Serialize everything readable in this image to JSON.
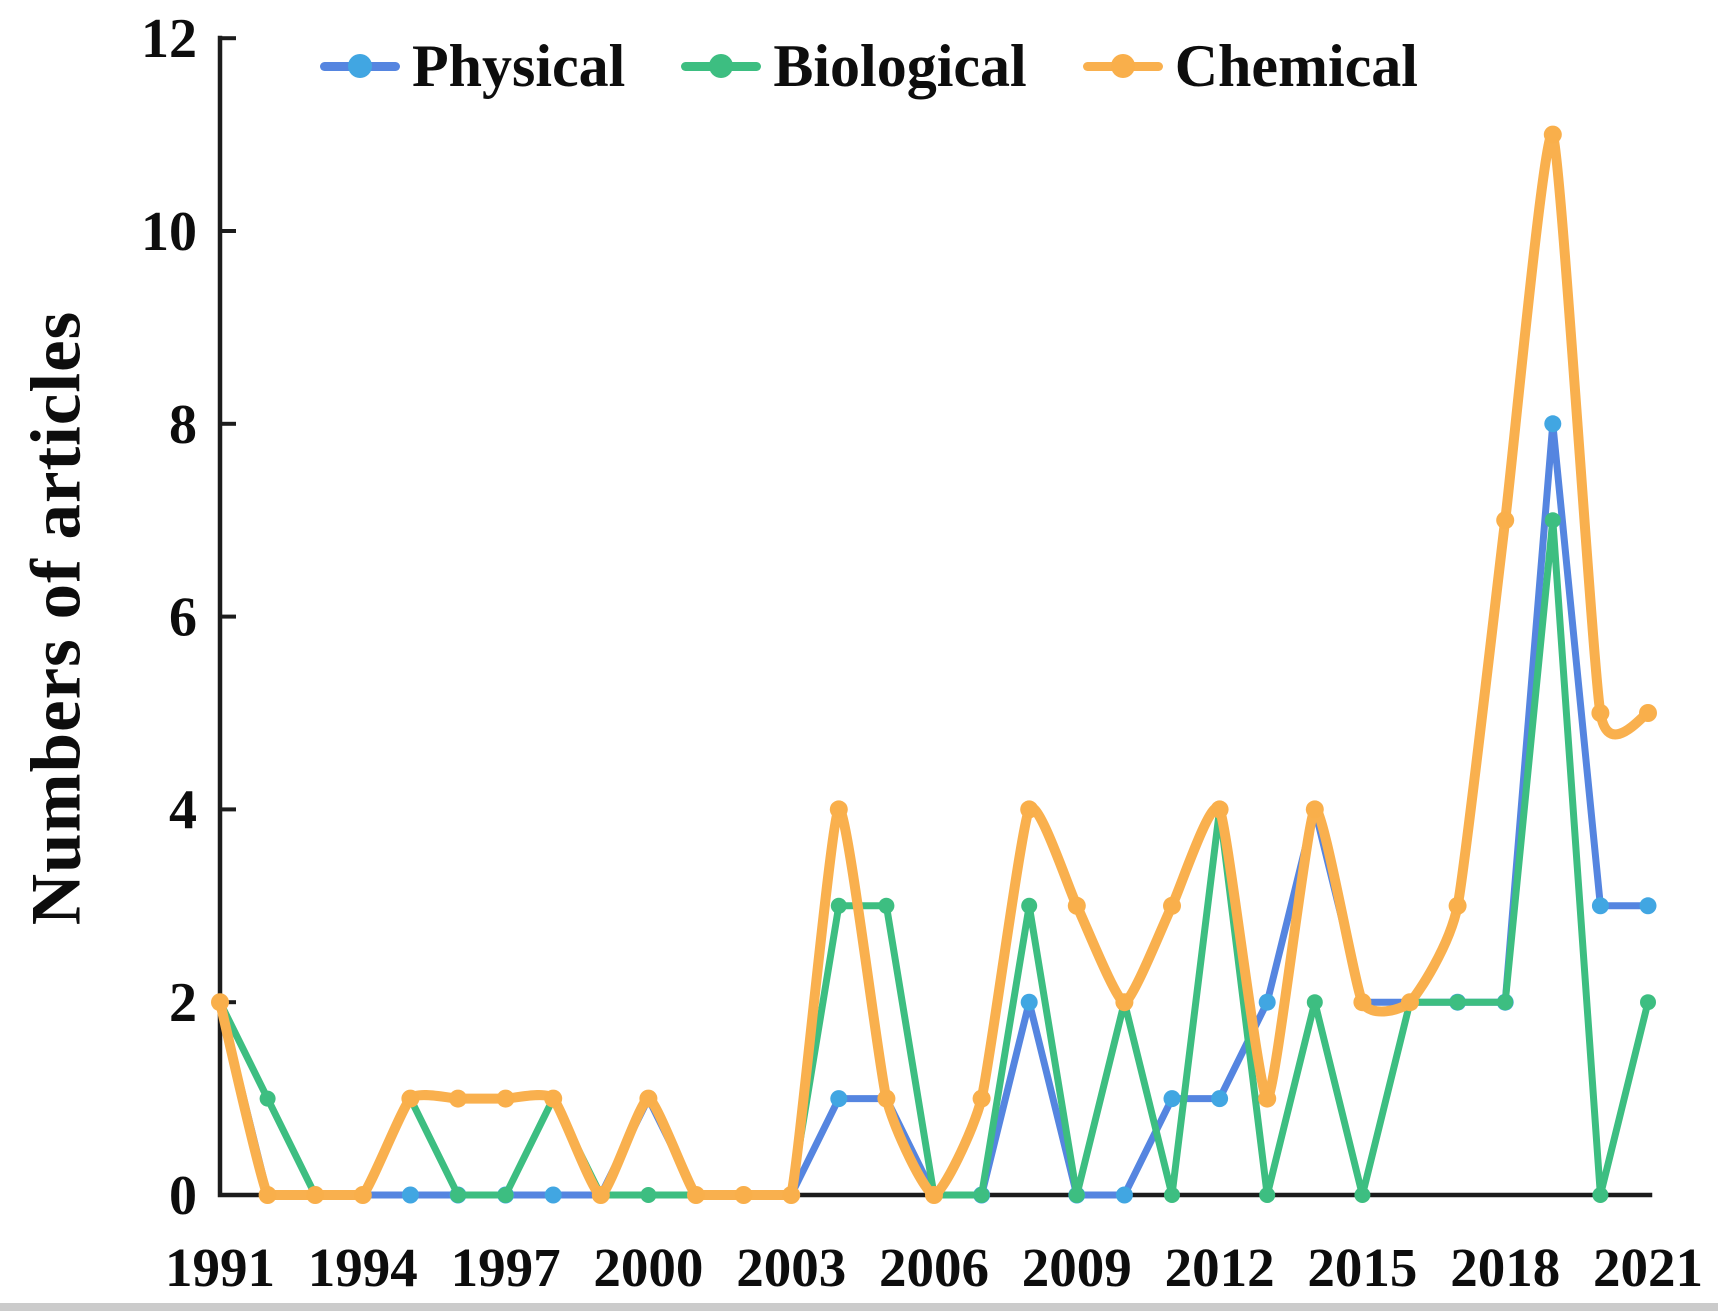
{
  "figure": {
    "background": "#ffffff",
    "footer_strip_color": "#cbcbcb",
    "axis_color": "#1c1c1c",
    "text_color": "#0d0d0d"
  },
  "chart_data": {
    "type": "line",
    "title": "",
    "xlabel": "",
    "ylabel": "Numbers of articles",
    "ylim": [
      0,
      12
    ],
    "grid": false,
    "legend_position": "top",
    "y_ticks": [
      0,
      2,
      4,
      6,
      8,
      10,
      12
    ],
    "x_ticks": [
      1991,
      1994,
      1997,
      2000,
      2003,
      2006,
      2009,
      2012,
      2015,
      2018,
      2021
    ],
    "x": [
      1991,
      1992,
      1993,
      1994,
      1995,
      1996,
      1997,
      1998,
      1999,
      2000,
      2001,
      2002,
      2003,
      2004,
      2005,
      2006,
      2007,
      2008,
      2009,
      2010,
      2011,
      2012,
      2013,
      2014,
      2015,
      2016,
      2017,
      2018,
      2019,
      2020,
      2021
    ],
    "series": [
      {
        "name": "Physical",
        "line_color": "#5585E0",
        "marker_color": "#41A6E2",
        "line_width": 7,
        "marker_radius": 8.5,
        "smooth": false,
        "values": [
          2,
          0,
          0,
          0,
          0,
          0,
          0,
          0,
          0,
          1,
          0,
          0,
          0,
          1,
          1,
          0,
          0,
          2,
          0,
          0,
          1,
          1,
          2,
          4,
          2,
          2,
          2,
          2,
          8,
          3,
          3
        ]
      },
      {
        "name": "Biological",
        "line_color": "#3DBE81",
        "marker_color": "#3DBE81",
        "line_width": 7,
        "marker_radius": 8,
        "smooth": false,
        "values": [
          2,
          1,
          0,
          0,
          1,
          0,
          0,
          1,
          0,
          0,
          0,
          0,
          0,
          3,
          3,
          0,
          0,
          3,
          0,
          2,
          0,
          4,
          0,
          2,
          0,
          2,
          2,
          2,
          7,
          0,
          2
        ]
      },
      {
        "name": "Chemical",
        "line_color": "#F9B04E",
        "marker_color": "#F9AF4B",
        "line_width": 10,
        "marker_radius": 9,
        "smooth": true,
        "values": [
          2,
          0,
          0,
          0,
          1,
          1,
          1,
          1,
          0,
          1,
          0,
          0,
          0,
          4,
          1,
          0,
          1,
          4,
          3,
          2,
          3,
          4,
          1,
          4,
          2,
          2,
          3,
          7,
          11,
          5,
          5
        ]
      }
    ]
  }
}
